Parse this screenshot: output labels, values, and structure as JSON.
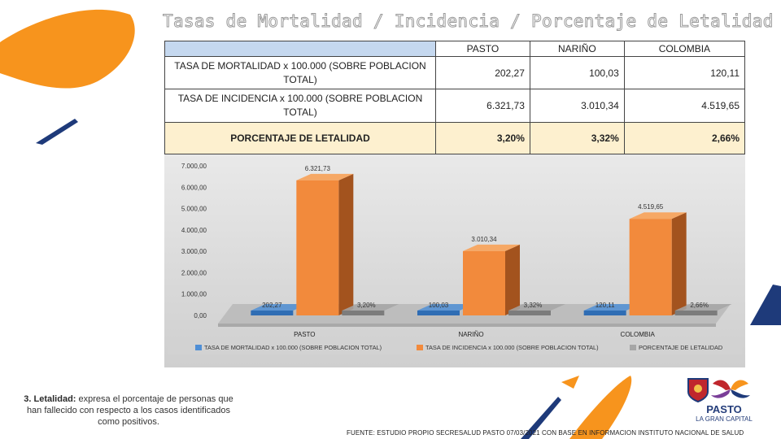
{
  "title": "Tasas de Mortalidad / Incidencia / Porcentaje de Letalidad",
  "table": {
    "columns": [
      "PASTO",
      "NARIÑO",
      "COLOMBIA"
    ],
    "rows": [
      {
        "label": "TASA DE MORTALIDAD x 100.000 (SOBRE POBLACION TOTAL)",
        "values": [
          "202,27",
          "100,03",
          "120,11"
        ]
      },
      {
        "label": "TASA DE INCIDENCIA x 100.000 (SOBRE POBLACION TOTAL)",
        "values": [
          "6.321,73",
          "3.010,34",
          "4.519,65"
        ]
      },
      {
        "label": "PORCENTAJE DE LETALIDAD",
        "values": [
          "3,20%",
          "3,32%",
          "2,66%"
        ]
      }
    ]
  },
  "chart_data": {
    "type": "bar",
    "categories": [
      "PASTO",
      "NARIÑO",
      "COLOMBIA"
    ],
    "series": [
      {
        "name": "TASA DE MORTALIDAD x 100.000 (SOBRE POBLACION TOTAL)",
        "values": [
          202.27,
          100.03,
          120.11
        ],
        "labels": [
          "202,27",
          "100,03",
          "120,11"
        ],
        "color": "#4f8fd6"
      },
      {
        "name": "TASA DE INCIDENCIA x 100.000 (SOBRE POBLACION TOTAL)",
        "values": [
          6321.73,
          3010.34,
          4519.65
        ],
        "labels": [
          "6.321,73",
          "3.010,34",
          "4.519,65"
        ],
        "color": "#f28a3c"
      },
      {
        "name": "PORCENTAJE DE LETALIDAD",
        "values": [
          3.2,
          3.32,
          2.66
        ],
        "labels": [
          "3,20%",
          "3,32%",
          "2,66%"
        ],
        "color": "#a6a6a6"
      }
    ],
    "yticks": [
      "0,00",
      "1.000,00",
      "2.000,00",
      "3.000,00",
      "4.000,00",
      "5.000,00",
      "6.000,00",
      "7.000,00"
    ],
    "ylim": [
      0,
      7000
    ],
    "legend": "bottom"
  },
  "note": {
    "number": "3. Letalidad:",
    "text": "expresa el porcentaje de personas que han fallecido con respecto a los casos identificados como positivos."
  },
  "source": "FUENTE: ESTUDIO PROPIO SECRESALUD PASTO 07/03/2021 CON BASE EN INFORMACION INSTITUTO NACIONAL DE SALUD",
  "logo": {
    "main": "PASTO",
    "sub": "LA GRAN CAPITAL"
  },
  "colors": {
    "orange": "#f7941d",
    "navy": "#1e3a7a"
  }
}
